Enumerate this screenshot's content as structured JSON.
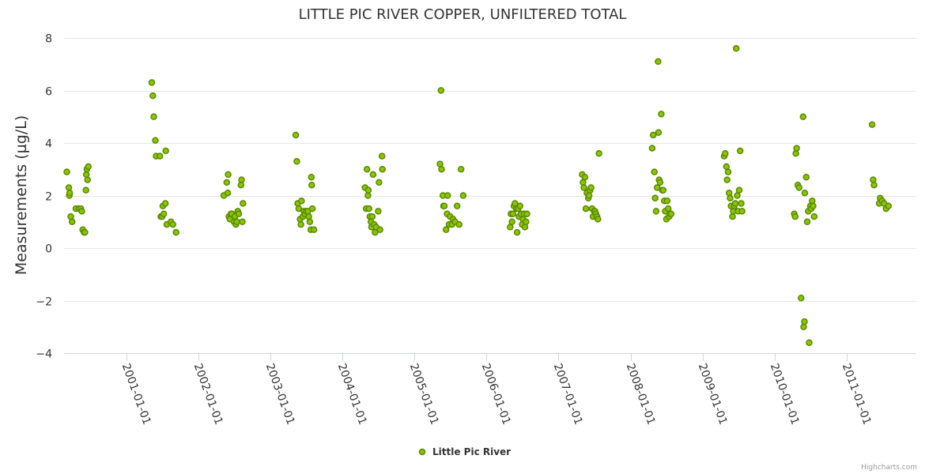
{
  "chart_data": {
    "type": "scatter",
    "title": "LITTLE PIC RIVER COPPER, UNFILTERED TOTAL",
    "ylabel": "Measurements (µg/L)",
    "xlabel": "",
    "ylim": [
      -4,
      8
    ],
    "yticks": [
      -4,
      -2,
      0,
      2,
      4,
      6,
      8
    ],
    "y_tick_labels": [
      "−4",
      "−2",
      "0",
      "2",
      "4",
      "6",
      "8"
    ],
    "xlim": [
      "2000-02-20",
      "2011-12-20"
    ],
    "xticks": [
      "2001-01-01",
      "2002-01-01",
      "2003-01-01",
      "2004-01-01",
      "2005-01-01",
      "2006-01-01",
      "2007-01-01",
      "2008-01-01",
      "2009-01-01",
      "2010-01-01",
      "2011-01-01"
    ],
    "grid": true,
    "legend_position": "bottom-center",
    "marker_color": "#8bc400",
    "marker_outline": "#5a8a00",
    "series": [
      {
        "name": "Little Pic River",
        "points": [
          [
            "2000-03-05",
            2.9
          ],
          [
            "2000-03-15",
            2.3
          ],
          [
            "2000-03-18",
            2.0
          ],
          [
            "2000-03-20",
            2.1
          ],
          [
            "2000-03-25",
            1.2
          ],
          [
            "2000-04-01",
            1.0
          ],
          [
            "2000-04-20",
            1.5
          ],
          [
            "2000-05-05",
            1.5
          ],
          [
            "2000-05-15",
            1.5
          ],
          [
            "2000-05-20",
            1.4
          ],
          [
            "2000-05-25",
            0.7
          ],
          [
            "2000-06-01",
            0.6
          ],
          [
            "2000-06-05",
            0.6
          ],
          [
            "2000-06-10",
            2.2
          ],
          [
            "2000-06-12",
            2.8
          ],
          [
            "2000-06-15",
            3.0
          ],
          [
            "2000-06-18",
            2.6
          ],
          [
            "2000-06-22",
            3.1
          ],
          [
            "2001-05-10",
            6.3
          ],
          [
            "2001-05-15",
            5.8
          ],
          [
            "2001-05-20",
            5.0
          ],
          [
            "2001-05-28",
            4.1
          ],
          [
            "2001-06-01",
            3.5
          ],
          [
            "2001-06-20",
            3.5
          ],
          [
            "2001-06-25",
            1.2
          ],
          [
            "2001-07-01",
            1.2
          ],
          [
            "2001-07-05",
            1.6
          ],
          [
            "2001-07-10",
            1.3
          ],
          [
            "2001-07-18",
            1.7
          ],
          [
            "2001-07-20",
            3.7
          ],
          [
            "2001-07-25",
            0.9
          ],
          [
            "2001-08-15",
            1.0
          ],
          [
            "2001-08-25",
            0.9
          ],
          [
            "2001-09-10",
            0.6
          ],
          [
            "2002-05-10",
            2.0
          ],
          [
            "2002-05-25",
            2.5
          ],
          [
            "2002-05-30",
            2.1
          ],
          [
            "2002-06-01",
            2.8
          ],
          [
            "2002-06-05",
            1.2
          ],
          [
            "2002-06-10",
            1.1
          ],
          [
            "2002-06-15",
            1.3
          ],
          [
            "2002-06-20",
            1.3
          ],
          [
            "2002-07-01",
            1.0
          ],
          [
            "2002-07-05",
            1.2
          ],
          [
            "2002-07-10",
            0.9
          ],
          [
            "2002-07-15",
            1.0
          ],
          [
            "2002-07-20",
            1.4
          ],
          [
            "2002-07-25",
            1.3
          ],
          [
            "2002-08-05",
            2.4
          ],
          [
            "2002-08-08",
            2.6
          ],
          [
            "2002-08-12",
            1.0
          ],
          [
            "2002-08-15",
            1.7
          ],
          [
            "2003-05-10",
            4.3
          ],
          [
            "2003-05-15",
            3.3
          ],
          [
            "2003-05-20",
            1.7
          ],
          [
            "2003-05-25",
            1.5
          ],
          [
            "2003-06-01",
            1.1
          ],
          [
            "2003-06-05",
            0.9
          ],
          [
            "2003-06-08",
            1.8
          ],
          [
            "2003-06-15",
            1.2
          ],
          [
            "2003-06-20",
            1.4
          ],
          [
            "2003-06-25",
            1.3
          ],
          [
            "2003-07-01",
            1.4
          ],
          [
            "2003-07-10",
            1.4
          ],
          [
            "2003-07-15",
            1.2
          ],
          [
            "2003-07-20",
            1.0
          ],
          [
            "2003-07-25",
            0.7
          ],
          [
            "2003-07-28",
            2.7
          ],
          [
            "2003-07-30",
            2.4
          ],
          [
            "2003-08-02",
            1.5
          ],
          [
            "2003-08-10",
            0.7
          ],
          [
            "2004-04-25",
            2.3
          ],
          [
            "2004-05-01",
            1.5
          ],
          [
            "2004-05-05",
            3.0
          ],
          [
            "2004-05-10",
            2.0
          ],
          [
            "2004-05-12",
            2.2
          ],
          [
            "2004-05-15",
            1.5
          ],
          [
            "2004-05-20",
            1.2
          ],
          [
            "2004-05-25",
            1.0
          ],
          [
            "2004-05-28",
            0.8
          ],
          [
            "2004-06-01",
            1.2
          ],
          [
            "2004-06-05",
            2.8
          ],
          [
            "2004-06-10",
            0.9
          ],
          [
            "2004-06-15",
            0.6
          ],
          [
            "2004-06-20",
            0.8
          ],
          [
            "2004-07-01",
            1.4
          ],
          [
            "2004-07-05",
            2.5
          ],
          [
            "2004-07-10",
            0.7
          ],
          [
            "2004-07-20",
            3.5
          ],
          [
            "2004-07-22",
            3.0
          ],
          [
            "2005-05-10",
            3.2
          ],
          [
            "2005-05-15",
            6.0
          ],
          [
            "2005-05-18",
            3.0
          ],
          [
            "2005-05-25",
            2.0
          ],
          [
            "2005-05-28",
            1.6
          ],
          [
            "2005-06-01",
            1.6
          ],
          [
            "2005-06-10",
            0.7
          ],
          [
            "2005-06-15",
            1.3
          ],
          [
            "2005-06-18",
            2.0
          ],
          [
            "2005-06-25",
            0.9
          ],
          [
            "2005-07-01",
            1.2
          ],
          [
            "2005-07-10",
            0.9
          ],
          [
            "2005-07-15",
            1.1
          ],
          [
            "2005-07-25",
            1.0
          ],
          [
            "2005-08-05",
            1.6
          ],
          [
            "2005-08-15",
            0.9
          ],
          [
            "2005-08-25",
            3.0
          ],
          [
            "2005-09-05",
            2.0
          ],
          [
            "2006-05-01",
            0.8
          ],
          [
            "2006-05-05",
            1.3
          ],
          [
            "2006-05-10",
            1.0
          ],
          [
            "2006-05-15",
            1.3
          ],
          [
            "2006-05-20",
            1.6
          ],
          [
            "2006-05-25",
            1.7
          ],
          [
            "2006-06-01",
            1.5
          ],
          [
            "2006-06-05",
            0.6
          ],
          [
            "2006-06-10",
            1.5
          ],
          [
            "2006-06-15",
            1.2
          ],
          [
            "2006-06-20",
            1.6
          ],
          [
            "2006-06-25",
            1.3
          ],
          [
            "2006-07-01",
            0.9
          ],
          [
            "2006-07-05",
            1.1
          ],
          [
            "2006-07-10",
            1.3
          ],
          [
            "2006-07-15",
            0.8
          ],
          [
            "2006-07-20",
            1.0
          ],
          [
            "2006-07-25",
            1.3
          ],
          [
            "2007-05-01",
            2.8
          ],
          [
            "2007-05-05",
            2.5
          ],
          [
            "2007-05-10",
            2.3
          ],
          [
            "2007-05-15",
            2.7
          ],
          [
            "2007-05-20",
            1.5
          ],
          [
            "2007-05-25",
            2.1
          ],
          [
            "2007-06-01",
            1.9
          ],
          [
            "2007-06-05",
            2.0
          ],
          [
            "2007-06-10",
            2.2
          ],
          [
            "2007-06-15",
            2.3
          ],
          [
            "2007-06-20",
            1.5
          ],
          [
            "2007-06-25",
            1.2
          ],
          [
            "2007-07-01",
            1.4
          ],
          [
            "2007-07-05",
            1.4
          ],
          [
            "2007-07-10",
            1.3
          ],
          [
            "2007-07-15",
            1.2
          ],
          [
            "2007-07-20",
            1.1
          ],
          [
            "2007-07-25",
            3.6
          ],
          [
            "2008-04-20",
            3.8
          ],
          [
            "2008-04-25",
            4.3
          ],
          [
            "2008-05-01",
            2.9
          ],
          [
            "2008-05-05",
            1.9
          ],
          [
            "2008-05-10",
            1.4
          ],
          [
            "2008-05-15",
            2.3
          ],
          [
            "2008-05-20",
            7.1
          ],
          [
            "2008-05-22",
            4.4
          ],
          [
            "2008-05-25",
            2.6
          ],
          [
            "2008-05-30",
            2.5
          ],
          [
            "2008-06-05",
            5.1
          ],
          [
            "2008-06-10",
            2.2
          ],
          [
            "2008-06-15",
            2.2
          ],
          [
            "2008-06-20",
            1.8
          ],
          [
            "2008-06-25",
            1.4
          ],
          [
            "2008-07-01",
            1.1
          ],
          [
            "2008-07-05",
            1.8
          ],
          [
            "2008-07-10",
            1.5
          ],
          [
            "2008-07-15",
            1.2
          ],
          [
            "2008-07-20",
            1.3
          ],
          [
            "2008-07-25",
            1.3
          ],
          [
            "2009-04-20",
            3.5
          ],
          [
            "2009-04-25",
            3.6
          ],
          [
            "2009-05-01",
            3.1
          ],
          [
            "2009-05-05",
            2.6
          ],
          [
            "2009-05-10",
            2.9
          ],
          [
            "2009-05-15",
            2.1
          ],
          [
            "2009-05-20",
            1.9
          ],
          [
            "2009-05-25",
            1.6
          ],
          [
            "2009-06-01",
            1.2
          ],
          [
            "2009-06-05",
            1.4
          ],
          [
            "2009-06-10",
            1.6
          ],
          [
            "2009-06-15",
            1.7
          ],
          [
            "2009-06-20",
            7.6
          ],
          [
            "2009-06-25",
            2.0
          ],
          [
            "2009-06-30",
            1.4
          ],
          [
            "2009-07-05",
            2.2
          ],
          [
            "2009-07-10",
            3.7
          ],
          [
            "2009-07-15",
            1.7
          ],
          [
            "2009-07-20",
            1.4
          ],
          [
            "2010-04-10",
            1.3
          ],
          [
            "2010-04-15",
            1.2
          ],
          [
            "2010-04-18",
            3.6
          ],
          [
            "2010-04-22",
            3.8
          ],
          [
            "2010-04-28",
            2.4
          ],
          [
            "2010-05-05",
            2.3
          ],
          [
            "2010-05-15",
            -1.9
          ],
          [
            "2010-05-25",
            5.0
          ],
          [
            "2010-05-28",
            -3.0
          ],
          [
            "2010-06-01",
            -2.8
          ],
          [
            "2010-06-03",
            2.1
          ],
          [
            "2010-06-10",
            2.7
          ],
          [
            "2010-06-15",
            1.0
          ],
          [
            "2010-06-20",
            1.4
          ],
          [
            "2010-06-25",
            -3.6
          ],
          [
            "2010-07-01",
            1.6
          ],
          [
            "2010-07-05",
            1.5
          ],
          [
            "2010-07-10",
            1.8
          ],
          [
            "2010-07-15",
            1.6
          ],
          [
            "2010-07-20",
            1.2
          ],
          [
            "2011-05-10",
            4.7
          ],
          [
            "2011-05-15",
            2.6
          ],
          [
            "2011-05-20",
            2.4
          ],
          [
            "2011-06-15",
            1.7
          ],
          [
            "2011-06-20",
            1.9
          ],
          [
            "2011-06-30",
            1.8
          ],
          [
            "2011-07-10",
            1.7
          ],
          [
            "2011-07-20",
            1.5
          ],
          [
            "2011-08-01",
            1.6
          ]
        ]
      }
    ]
  },
  "credits": "Highcharts.com"
}
